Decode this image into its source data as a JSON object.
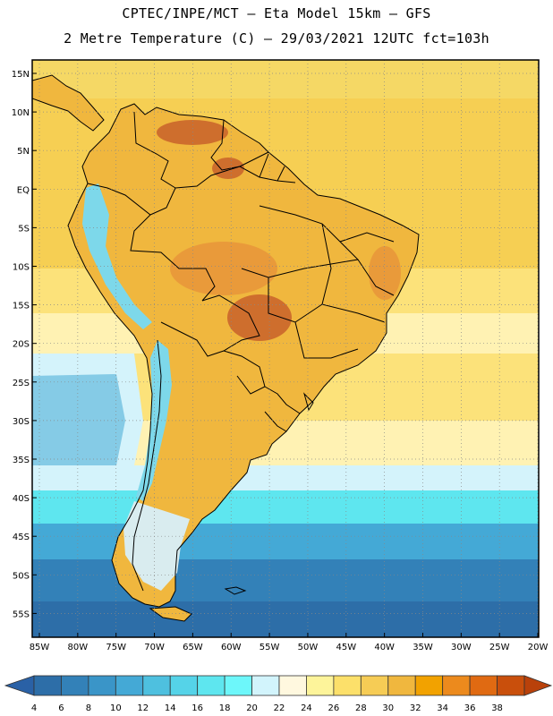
{
  "header": {
    "line1": "CPTEC/INPE/MCT –  Eta Model 15km – GFS",
    "line2": "2 Metre Temperature (C) – 29/03/2021 12UTC fct=103h"
  },
  "axes": {
    "lat_labels": [
      "15N",
      "10N",
      "5N",
      "EQ",
      "5S",
      "10S",
      "15S",
      "20S",
      "25S",
      "30S",
      "35S",
      "40S",
      "45S",
      "50S",
      "55S"
    ],
    "lon_labels": [
      "85W",
      "80W",
      "75W",
      "70W",
      "65W",
      "60W",
      "55W",
      "50W",
      "45W",
      "40W",
      "35W",
      "30W",
      "25W",
      "20W"
    ]
  },
  "colorbar": {
    "levels": [
      "4",
      "6",
      "8",
      "10",
      "12",
      "14",
      "16",
      "18",
      "20",
      "22",
      "24",
      "26",
      "28",
      "30",
      "32",
      "34",
      "36",
      "38"
    ],
    "colors": [
      "#2d6ea8",
      "#3381b8",
      "#3a95c8",
      "#44a9d6",
      "#4ec0df",
      "#55d3e8",
      "#5ee6ef",
      "#6df7fa",
      "#d2f4fc",
      "#fff8df",
      "#fdf49a",
      "#fce06a",
      "#f6cc55",
      "#f0b73e",
      "#f2a200",
      "#ec8a1d",
      "#e06a12",
      "#c94f0c"
    ],
    "under_color": "#2a61a6",
    "over_color": "#b9410a"
  },
  "field": {
    "ocean_colors": {
      "tropical_north": "#f5d865",
      "tropical_band": "#f6cf53",
      "subtropical": "#fce27a",
      "mid_pale": "#fff2b3",
      "cool": "#d4f3fb",
      "cyan": "#5ee6ef",
      "teal": "#44a9d6",
      "deep": "#3381b8",
      "deepest": "#2d6ea8"
    },
    "land_colors": {
      "warm": "#f0b73e",
      "hot": "#e8953a",
      "very_hot": "#c8612a",
      "andes_cold": "#7dd8ea",
      "patagonia": "#d9ecef"
    }
  }
}
